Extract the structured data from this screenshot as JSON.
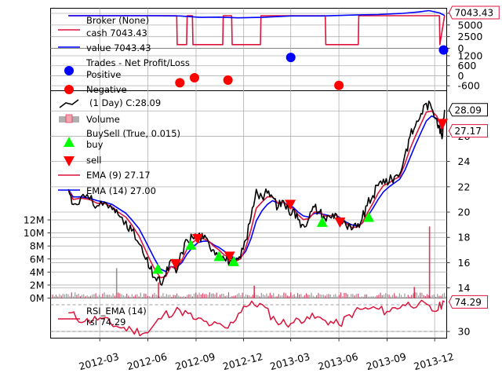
{
  "chart_data": [
    {
      "panel": "broker",
      "type": "line",
      "legend": {
        "title": "Broker (None)",
        "items": [
          "cash 7043.43",
          "value 7043.43"
        ]
      },
      "series": [
        {
          "name": "cash",
          "color": "#dc143c",
          "x": [
            "2012-01-01",
            "2012-07-26",
            "2012-07-27",
            "2012-08-14",
            "2012-08-15",
            "2012-08-25",
            "2012-08-26",
            "2012-10-22",
            "2012-10-23",
            "2012-11-08",
            "2012-11-09",
            "2013-01-02",
            "2013-01-03",
            "2013-05-06",
            "2013-05-07",
            "2013-07-08",
            "2013-07-09",
            "2013-12-10",
            "2013-12-11",
            "2013-12-20"
          ],
          "values": [
            7000,
            7000,
            800,
            800,
            7000,
            7000,
            800,
            800,
            7000,
            7000,
            800,
            800,
            7000,
            7000,
            800,
            800,
            7000,
            7000,
            800,
            7043.43
          ]
        },
        {
          "name": "value",
          "color": "#0000ff",
          "x": [
            "2012-01-01",
            "2012-03-01",
            "2012-05-01",
            "2012-06-15",
            "2012-08-01",
            "2012-09-10",
            "2012-10-15",
            "2012-11-20",
            "2013-01-05",
            "2013-03-01",
            "2013-05-01",
            "2013-07-01",
            "2013-08-15",
            "2013-10-01",
            "2013-11-01",
            "2013-11-20",
            "2013-12-10",
            "2013-12-20"
          ],
          "values": [
            7000,
            7000,
            7000,
            7000,
            6950,
            6650,
            6700,
            6550,
            6650,
            6950,
            6950,
            7150,
            7250,
            7500,
            7800,
            8100,
            7600,
            7043.43
          ]
        }
      ],
      "ylim": [
        0,
        8600
      ],
      "yticks": [
        0,
        2500,
        5000,
        7500
      ],
      "last_value_tag": "7043.43"
    },
    {
      "panel": "trades",
      "type": "scatter",
      "legend": {
        "title": "Trades - Net Profit/Loss",
        "items": [
          "Positive",
          "Negative"
        ]
      },
      "series": [
        {
          "name": "Positive",
          "color": "#0000ff",
          "x": [
            "2013-03-01",
            "2013-12-18"
          ],
          "values": [
            1100,
            1550
          ]
        },
        {
          "name": "Negative",
          "color": "#ff0000",
          "x": [
            "2012-08-01",
            "2012-08-29",
            "2012-11-01",
            "2013-06-01"
          ],
          "values": [
            -420,
            -120,
            -260,
            -580
          ]
        }
      ],
      "ylim": [
        -900,
        1650
      ],
      "yticks": [
        -600,
        0,
        600,
        1200
      ]
    },
    {
      "panel": "price",
      "type": "line",
      "legend": {
        "items": [
          "(1 Day) C:28.09",
          "Volume",
          "BuySell (True, 0.015)",
          "buy",
          "sell",
          "EMA (9) 27.17",
          "EMA (14) 27.00"
        ]
      },
      "price": {
        "name": "(1 Day) C:28.09",
        "x": [
          "2012-01-01",
          "2012-01-10",
          "2012-01-25",
          "2012-02-10",
          "2012-02-25",
          "2012-03-10",
          "2012-03-25",
          "2012-04-05",
          "2012-04-20",
          "2012-05-01",
          "2012-05-15",
          "2012-05-25",
          "2012-06-05",
          "2012-06-15",
          "2012-06-25",
          "2012-07-05",
          "2012-07-15",
          "2012-07-25",
          "2012-08-05",
          "2012-08-15",
          "2012-08-25",
          "2012-09-05",
          "2012-09-15",
          "2012-09-25",
          "2012-10-05",
          "2012-10-15",
          "2012-10-25",
          "2012-11-05",
          "2012-11-15",
          "2012-11-25",
          "2012-12-05",
          "2012-12-15",
          "2012-12-25",
          "2013-01-05",
          "2013-01-15",
          "2013-01-25",
          "2013-02-05",
          "2013-02-15",
          "2013-02-25",
          "2013-03-05",
          "2013-03-15",
          "2013-03-25",
          "2013-04-05",
          "2013-04-15",
          "2013-04-25",
          "2013-05-05",
          "2013-05-15",
          "2013-05-25",
          "2013-06-05",
          "2013-06-15",
          "2013-06-25",
          "2013-07-05",
          "2013-07-15",
          "2013-07-25",
          "2013-08-05",
          "2013-08-15",
          "2013-08-25",
          "2013-09-05",
          "2013-09-15",
          "2013-09-25",
          "2013-10-05",
          "2013-10-15",
          "2013-10-25",
          "2013-11-05",
          "2013-11-15",
          "2013-11-25",
          "2013-12-05",
          "2013-12-10",
          "2013-12-15",
          "2013-12-20"
        ],
        "values": [
          21.8,
          20.6,
          21.2,
          21.0,
          20.5,
          20.8,
          20.2,
          19.8,
          19.3,
          18.5,
          17.5,
          16.5,
          15.5,
          14.8,
          14.3,
          15.0,
          16.2,
          15.2,
          16.8,
          17.8,
          18.0,
          18.2,
          17.9,
          17.6,
          17.0,
          16.8,
          16.3,
          16.2,
          15.9,
          16.4,
          17.8,
          19.6,
          21.8,
          21.2,
          21.5,
          21.2,
          20.4,
          20.9,
          20.1,
          20.2,
          19.4,
          19.0,
          19.6,
          20.4,
          20.0,
          19.5,
          19.6,
          19.9,
          19.2,
          18.9,
          18.6,
          18.8,
          19.4,
          20.5,
          21.3,
          22.1,
          22.6,
          22.4,
          22.8,
          23.0,
          24.5,
          26.0,
          26.8,
          27.8,
          28.6,
          28.2,
          27.4,
          26.8,
          25.8,
          28.09
        ],
        "color": "#000000"
      },
      "ema9": {
        "name": "EMA (9) 27.17",
        "color": "#dc143c",
        "values": [
          21.8,
          21.0,
          21.1,
          21.0,
          20.7,
          20.7,
          20.4,
          20.0,
          19.6,
          19.0,
          18.1,
          17.2,
          16.2,
          15.4,
          14.8,
          14.9,
          15.7,
          15.5,
          16.2,
          17.1,
          17.6,
          17.9,
          17.9,
          17.7,
          17.3,
          17.0,
          16.6,
          16.4,
          16.1,
          16.3,
          17.2,
          18.6,
          20.3,
          20.8,
          21.2,
          21.2,
          20.7,
          20.8,
          20.4,
          20.3,
          19.8,
          19.4,
          19.5,
          20.0,
          20.0,
          19.7,
          19.7,
          19.8,
          19.4,
          19.1,
          18.8,
          18.8,
          19.1,
          19.9,
          20.7,
          21.5,
          22.1,
          22.3,
          22.6,
          22.8,
          23.8,
          25.0,
          26.0,
          27.0,
          27.9,
          28.0,
          27.6,
          27.1,
          26.4,
          27.17
        ]
      },
      "ema14": {
        "name": "EMA (14) 27.00",
        "color": "#0000ff",
        "values": [
          21.8,
          21.2,
          21.2,
          21.1,
          20.9,
          20.8,
          20.6,
          20.3,
          19.9,
          19.4,
          18.7,
          17.9,
          17.0,
          16.2,
          15.5,
          15.3,
          15.7,
          15.6,
          16.0,
          16.7,
          17.2,
          17.6,
          17.7,
          17.7,
          17.4,
          17.2,
          16.9,
          16.6,
          16.3,
          16.4,
          16.9,
          17.9,
          19.3,
          20.1,
          20.6,
          20.9,
          20.7,
          20.8,
          20.5,
          20.4,
          20.0,
          19.7,
          19.6,
          19.9,
          19.9,
          19.8,
          19.7,
          19.8,
          19.5,
          19.2,
          19.0,
          18.9,
          19.1,
          19.6,
          20.3,
          21.0,
          21.6,
          22.0,
          22.3,
          22.6,
          23.3,
          24.3,
          25.3,
          26.3,
          27.2,
          27.6,
          27.4,
          27.1,
          26.6,
          27.0
        ]
      },
      "buys": {
        "x": [
          "2012-06-20",
          "2012-08-22",
          "2012-10-15",
          "2012-11-12",
          "2013-04-30",
          "2013-07-28"
        ],
        "values": [
          15.5,
          17.4,
          16.5,
          16.1,
          19.2,
          19.6
        ]
      },
      "sells": {
        "x": [
          "2012-07-24",
          "2012-09-04",
          "2012-11-04",
          "2013-02-28",
          "2013-06-03",
          "2013-12-16"
        ],
        "values": [
          15.9,
          17.9,
          16.5,
          20.6,
          19.2,
          27.0
        ]
      },
      "ylim": [
        13.2,
        29.6
      ],
      "yticks": [
        14,
        16,
        18,
        20,
        22,
        24,
        26,
        28
      ],
      "last_value_tags": [
        "28.09",
        "27.17"
      ]
    },
    {
      "panel": "volume",
      "type": "bar",
      "ylim": [
        0,
        12000000
      ],
      "yticks": [
        0,
        2000000,
        4000000,
        6000000,
        8000000,
        10000000,
        12000000
      ],
      "ytick_labels": [
        "0M",
        "2M",
        "4M",
        "6M",
        "8M",
        "10M",
        "12M"
      ],
      "spikes": [
        {
          "x": "2012-04-01",
          "value": 4600000,
          "color": "#808080"
        },
        {
          "x": "2012-06-20",
          "value": 2400000,
          "color": "#dc143c"
        },
        {
          "x": "2012-12-20",
          "value": 1900000,
          "color": "#dc143c"
        },
        {
          "x": "2013-10-22",
          "value": 1700000,
          "color": "#dc143c"
        },
        {
          "x": "2013-11-20",
          "value": 11000000,
          "color": "#dc143c"
        }
      ],
      "typical_volume": 600000
    },
    {
      "panel": "rsi",
      "type": "line",
      "legend": {
        "title": "RSI_EMA (14)",
        "items": [
          "rsi 74.29"
        ]
      },
      "series": [
        {
          "name": "rsi",
          "color": "#dc143c",
          "x": [
            "2012-01-01",
            "2012-02-01",
            "2012-03-01",
            "2012-04-01",
            "2012-05-01",
            "2012-06-01",
            "2012-07-01",
            "2012-08-01",
            "2012-09-01",
            "2012-10-01",
            "2012-11-01",
            "2012-12-01",
            "2013-01-01",
            "2013-02-01",
            "2013-03-01",
            "2013-04-01",
            "2013-05-01",
            "2013-06-01",
            "2013-07-01",
            "2013-08-01",
            "2013-09-01",
            "2013-10-01",
            "2013-11-01",
            "2013-12-01",
            "2013-12-20"
          ],
          "values": [
            58,
            45,
            50,
            38,
            32,
            28,
            55,
            62,
            48,
            40,
            35,
            68,
            72,
            45,
            42,
            52,
            48,
            40,
            60,
            65,
            60,
            70,
            72,
            60,
            74.29
          ]
        }
      ],
      "ylim": [
        20,
        80
      ],
      "yticks": [
        30
      ],
      "hlines": [
        30,
        70
      ],
      "last_value_tag": "74.29"
    }
  ],
  "x_axis": {
    "range": [
      "2011-11-28",
      "2013-12-24"
    ],
    "ticks": [
      "2012-03",
      "2012-06",
      "2012-09",
      "2012-12",
      "2013-03",
      "2013-06",
      "2013-09",
      "2013-12"
    ]
  }
}
